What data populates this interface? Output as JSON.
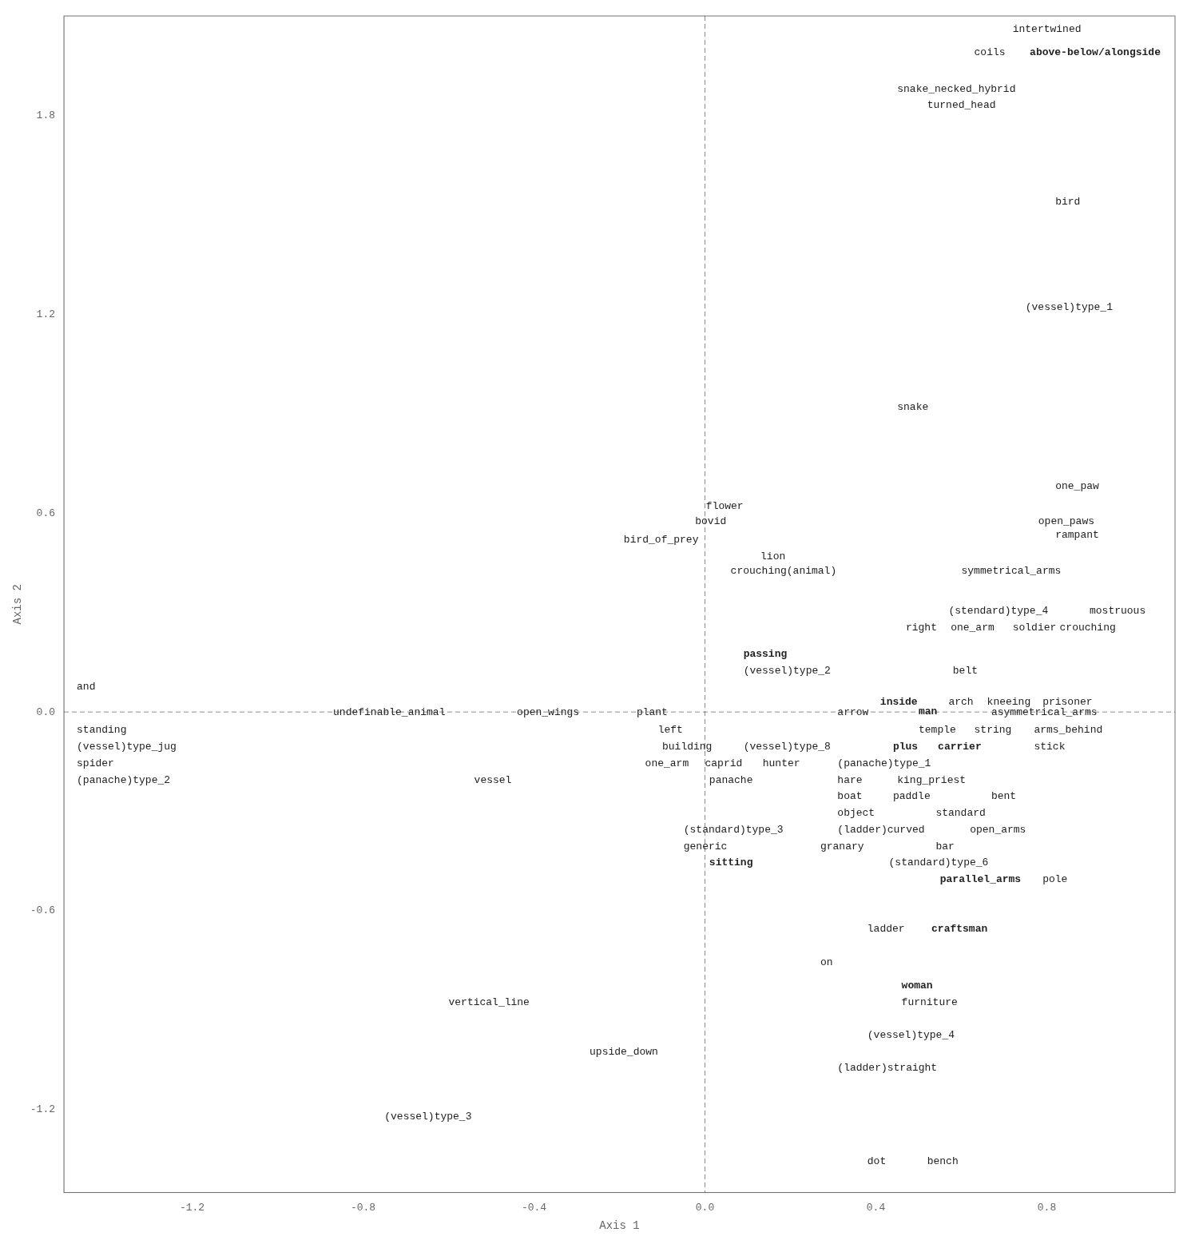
{
  "chart_data": {
    "type": "scatter",
    "xlabel": "Axis 1",
    "ylabel": "Axis 2",
    "xlim": [
      -1.5,
      1.1
    ],
    "ylim": [
      -1.45,
      2.1
    ],
    "xticks": [
      -1.2,
      -0.8,
      -0.4,
      {
        "value": 0.0,
        "label": "0.0"
      },
      0.4,
      0.8
    ],
    "yticks": [
      -1.2,
      -0.6,
      {
        "value": 0.0,
        "label": "0.0"
      },
      0.6,
      1.2,
      1.8
    ],
    "grid": false,
    "annotations": [
      {
        "text": "intertwined",
        "x": 0.72,
        "y": 2.06,
        "bold": false
      },
      {
        "text": "coils",
        "x": 0.63,
        "y": 1.99,
        "bold": false
      },
      {
        "text": "above-below/alongside",
        "x": 0.76,
        "y": 1.99,
        "bold": true
      },
      {
        "text": "snake_necked_hybrid",
        "x": 0.45,
        "y": 1.88,
        "bold": false
      },
      {
        "text": "turned_head",
        "x": 0.52,
        "y": 1.83,
        "bold": false
      },
      {
        "text": "bird",
        "x": 0.82,
        "y": 1.54,
        "bold": false
      },
      {
        "text": "(vessel)type_1",
        "x": 0.75,
        "y": 1.22,
        "bold": false
      },
      {
        "text": "snake",
        "x": 0.45,
        "y": 0.92,
        "bold": false
      },
      {
        "text": "one_paw",
        "x": 0.82,
        "y": 0.68,
        "bold": false
      },
      {
        "text": "flower",
        "x": 0.09,
        "y": 0.62,
        "bold": false,
        "align": "right"
      },
      {
        "text": "open_paws",
        "x": 0.78,
        "y": 0.575,
        "bold": false
      },
      {
        "text": "bovid",
        "x": 0.05,
        "y": 0.575,
        "bold": false,
        "align": "right"
      },
      {
        "text": "rampant",
        "x": 0.82,
        "y": 0.535,
        "bold": false
      },
      {
        "text": "bird_of_prey",
        "x": -0.19,
        "y": 0.52,
        "bold": false
      },
      {
        "text": "lion",
        "x": 0.13,
        "y": 0.47,
        "bold": false
      },
      {
        "text": "crouching(animal)",
        "x": 0.06,
        "y": 0.425,
        "bold": false
      },
      {
        "text": "symmetrical_arms",
        "x": 0.6,
        "y": 0.425,
        "bold": false
      },
      {
        "text": "(stendard)type_4",
        "x": 0.57,
        "y": 0.305,
        "bold": false
      },
      {
        "text": "mostruous",
        "x": 0.9,
        "y": 0.305,
        "bold": false
      },
      {
        "text": "right",
        "x": 0.47,
        "y": 0.255,
        "bold": false
      },
      {
        "text": "one_arm",
        "x": 0.575,
        "y": 0.255,
        "bold": false
      },
      {
        "text": "soldier",
        "x": 0.72,
        "y": 0.255,
        "bold": false
      },
      {
        "text": "crouching",
        "x": 0.83,
        "y": 0.255,
        "bold": false
      },
      {
        "text": "passing",
        "x": 0.09,
        "y": 0.175,
        "bold": true
      },
      {
        "text": "(vessel)type_2",
        "x": 0.09,
        "y": 0.125,
        "bold": false
      },
      {
        "text": "belt",
        "x": 0.58,
        "y": 0.125,
        "bold": false
      },
      {
        "text": "and",
        "x": -1.47,
        "y": 0.075,
        "bold": false
      },
      {
        "text": "inside",
        "x": 0.41,
        "y": 0.03,
        "bold": true
      },
      {
        "text": "arch",
        "x": 0.57,
        "y": 0.03,
        "bold": false
      },
      {
        "text": "kneeing",
        "x": 0.66,
        "y": 0.03,
        "bold": false
      },
      {
        "text": "prisoner",
        "x": 0.79,
        "y": 0.03,
        "bold": false
      },
      {
        "text": "undefinable_animal",
        "x": -0.87,
        "y": 0.0,
        "bold": false
      },
      {
        "text": "open_wings",
        "x": -0.44,
        "y": 0.0,
        "bold": false
      },
      {
        "text": "plant",
        "x": -0.16,
        "y": 0.0,
        "bold": false
      },
      {
        "text": "arrow",
        "x": 0.31,
        "y": 0.0,
        "bold": false
      },
      {
        "text": "man",
        "x": 0.5,
        "y": 0.0,
        "bold": true
      },
      {
        "text": "asymmetrical_arms",
        "x": 0.67,
        "y": 0.0,
        "bold": false
      },
      {
        "text": "standing",
        "x": -1.47,
        "y": -0.055,
        "bold": false
      },
      {
        "text": "temple",
        "x": 0.5,
        "y": -0.055,
        "bold": false
      },
      {
        "text": "string",
        "x": 0.63,
        "y": -0.055,
        "bold": false
      },
      {
        "text": "arms_behind",
        "x": 0.77,
        "y": -0.055,
        "bold": false
      },
      {
        "text": "(vessel)type_jug",
        "x": -1.47,
        "y": -0.105,
        "bold": false
      },
      {
        "text": "building",
        "x": -0.1,
        "y": -0.105,
        "bold": false
      },
      {
        "text": "(vessel)type_8",
        "x": 0.09,
        "y": -0.105,
        "bold": false
      },
      {
        "text": "plus",
        "x": 0.44,
        "y": -0.105,
        "bold": true
      },
      {
        "text": "carrier",
        "x": 0.545,
        "y": -0.105,
        "bold": true
      },
      {
        "text": "stick",
        "x": 0.77,
        "y": -0.105,
        "bold": false
      },
      {
        "text": "spider",
        "x": -1.47,
        "y": -0.155,
        "bold": false
      },
      {
        "text": "one_arm",
        "x": -0.14,
        "y": -0.155,
        "bold": false
      },
      {
        "text": "caprid",
        "x": 0.0,
        "y": -0.155,
        "bold": false
      },
      {
        "text": "hunter",
        "x": 0.135,
        "y": -0.155,
        "bold": false
      },
      {
        "text": "left",
        "x": -0.11,
        "y": -0.055,
        "bold": false
      },
      {
        "text": "(panache)type_1",
        "x": 0.31,
        "y": -0.155,
        "bold": false
      },
      {
        "text": "(panache)type_2",
        "x": -1.47,
        "y": -0.205,
        "bold": false
      },
      {
        "text": "panache",
        "x": 0.01,
        "y": -0.205,
        "bold": false
      },
      {
        "text": "hare",
        "x": 0.31,
        "y": -0.205,
        "bold": false
      },
      {
        "text": "king_priest",
        "x": 0.45,
        "y": -0.205,
        "bold": false
      },
      {
        "text": "vessel",
        "x": -0.54,
        "y": -0.205,
        "bold": false
      },
      {
        "text": "boat",
        "x": 0.31,
        "y": -0.255,
        "bold": false
      },
      {
        "text": "paddle",
        "x": 0.44,
        "y": -0.255,
        "bold": false
      },
      {
        "text": "bent",
        "x": 0.67,
        "y": -0.255,
        "bold": false
      },
      {
        "text": "object",
        "x": 0.31,
        "y": -0.305,
        "bold": false
      },
      {
        "text": "standard",
        "x": 0.54,
        "y": -0.305,
        "bold": false
      },
      {
        "text": "(standard)type_3",
        "x": -0.05,
        "y": -0.355,
        "bold": false
      },
      {
        "text": "(ladder)curved",
        "x": 0.31,
        "y": -0.355,
        "bold": false
      },
      {
        "text": "open_arms",
        "x": 0.62,
        "y": -0.355,
        "bold": false
      },
      {
        "text": "generic",
        "x": -0.05,
        "y": -0.405,
        "bold": false
      },
      {
        "text": "granary",
        "x": 0.27,
        "y": -0.405,
        "bold": false
      },
      {
        "text": "bar",
        "x": 0.54,
        "y": -0.405,
        "bold": false
      },
      {
        "text": "sitting",
        "x": 0.01,
        "y": -0.455,
        "bold": true
      },
      {
        "text": "(standard)type_6",
        "x": 0.43,
        "y": -0.455,
        "bold": false
      },
      {
        "text": "parallel_arms",
        "x": 0.55,
        "y": -0.505,
        "bold": true
      },
      {
        "text": "pole",
        "x": 0.79,
        "y": -0.505,
        "bold": false
      },
      {
        "text": "ladder",
        "x": 0.38,
        "y": -0.655,
        "bold": false
      },
      {
        "text": "craftsman",
        "x": 0.53,
        "y": -0.655,
        "bold": true
      },
      {
        "text": "on",
        "x": 0.27,
        "y": -0.755,
        "bold": false
      },
      {
        "text": "woman",
        "x": 0.46,
        "y": -0.825,
        "bold": true
      },
      {
        "text": "furniture",
        "x": 0.46,
        "y": -0.875,
        "bold": false
      },
      {
        "text": "vertical_line",
        "x": -0.6,
        "y": -0.875,
        "bold": false
      },
      {
        "text": "(vessel)type_4",
        "x": 0.38,
        "y": -0.975,
        "bold": false
      },
      {
        "text": "upside_down",
        "x": -0.27,
        "y": -1.025,
        "bold": false
      },
      {
        "text": "(ladder)straight",
        "x": 0.31,
        "y": -1.075,
        "bold": false
      },
      {
        "text": "(vessel)type_3",
        "x": -0.75,
        "y": -1.22,
        "bold": false
      },
      {
        "text": "dot",
        "x": 0.38,
        "y": -1.355,
        "bold": false
      },
      {
        "text": "bench",
        "x": 0.52,
        "y": -1.355,
        "bold": false
      }
    ]
  }
}
